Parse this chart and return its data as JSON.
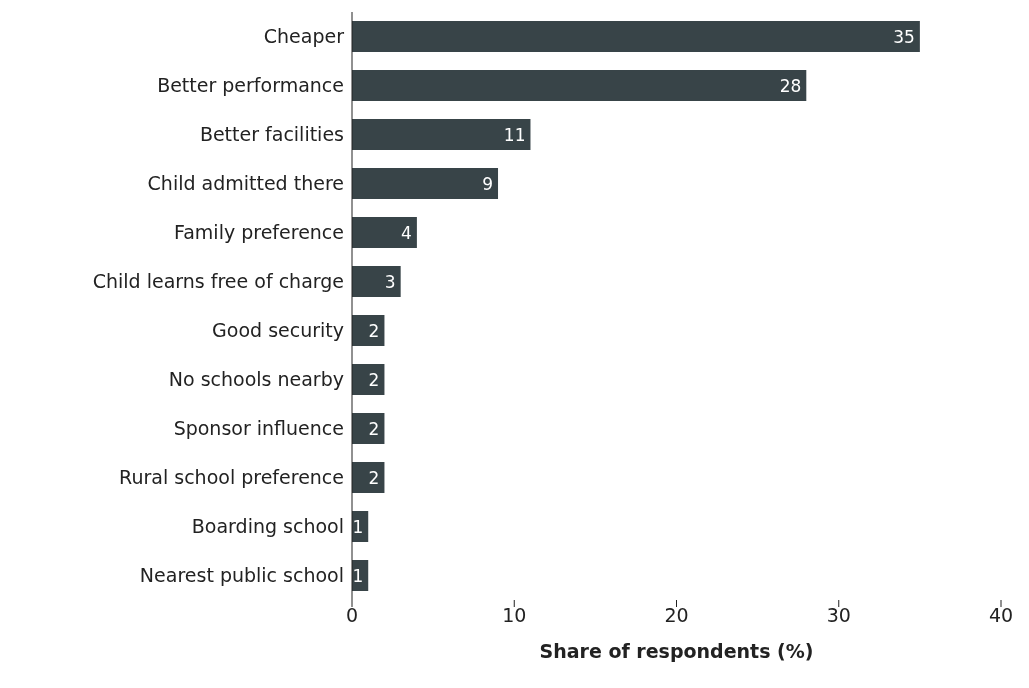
{
  "chart_data": {
    "type": "bar",
    "orientation": "horizontal",
    "categories": [
      "Cheaper",
      "Better performance",
      "Better facilities",
      "Child admitted there",
      "Family preference",
      "Child learns free of charge",
      "Good security",
      "No schools nearby",
      "Sponsor influence",
      "Rural school preference",
      "Boarding school",
      "Nearest public school"
    ],
    "values": [
      35,
      28,
      11,
      9,
      4,
      3,
      2,
      2,
      2,
      2,
      1,
      1
    ],
    "color": "#384448",
    "xlim": [
      0,
      40
    ],
    "xticks": [
      0,
      10,
      20,
      30,
      40
    ],
    "xlabel": "Share of respondents (%)",
    "data_labels": true
  }
}
